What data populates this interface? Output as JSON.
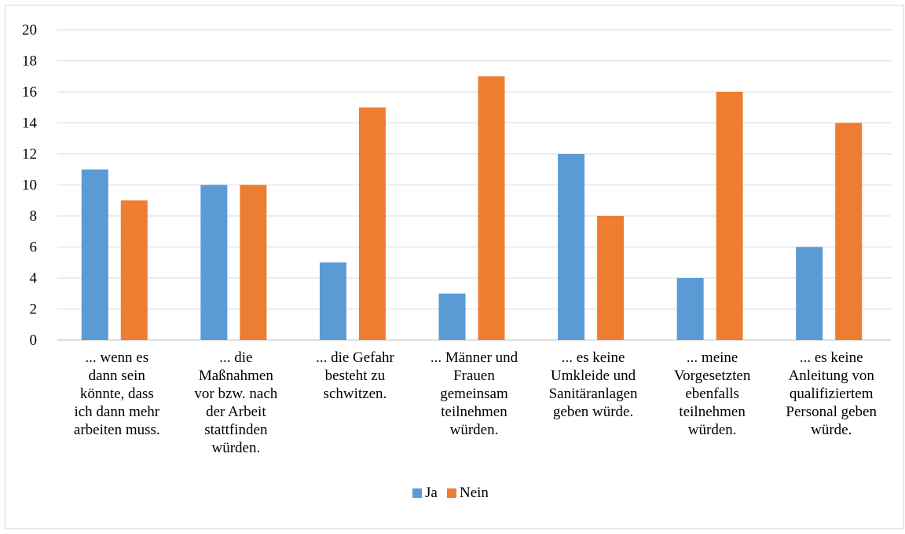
{
  "chart_data": {
    "type": "bar",
    "categories": [
      [
        "... wenn es",
        "dann sein",
        "könnte, dass",
        "ich dann mehr",
        "arbeiten muss."
      ],
      [
        "... die",
        "Maßnahmen",
        "vor bzw. nach",
        "der Arbeit",
        "stattfinden",
        "würden."
      ],
      [
        "... die Gefahr",
        "besteht zu",
        "schwitzen."
      ],
      [
        "... Männer und",
        "Frauen",
        "gemeinsam",
        "teilnehmen",
        "würden."
      ],
      [
        "... es keine",
        "Umkleide und",
        "Sanitäranlagen",
        "geben würde."
      ],
      [
        "... meine",
        "Vorgesetzten",
        "ebenfalls",
        "teilnehmen",
        "würden."
      ],
      [
        "... es keine",
        "Anleitung von",
        "qualifiziertem",
        "Personal geben",
        "würde."
      ]
    ],
    "series": [
      {
        "name": "Ja",
        "color": "#5b9bd5",
        "values": [
          11,
          10,
          5,
          3,
          12,
          4,
          6
        ]
      },
      {
        "name": "Nein",
        "color": "#ed7d31",
        "values": [
          9,
          10,
          15,
          17,
          8,
          16,
          14
        ]
      }
    ],
    "y_ticks": [
      "0",
      "2",
      "4",
      "6",
      "8",
      "10",
      "12",
      "14",
      "16",
      "18",
      "20"
    ],
    "ylim": [
      0,
      20
    ],
    "grid": true,
    "legend_position": "bottom"
  }
}
